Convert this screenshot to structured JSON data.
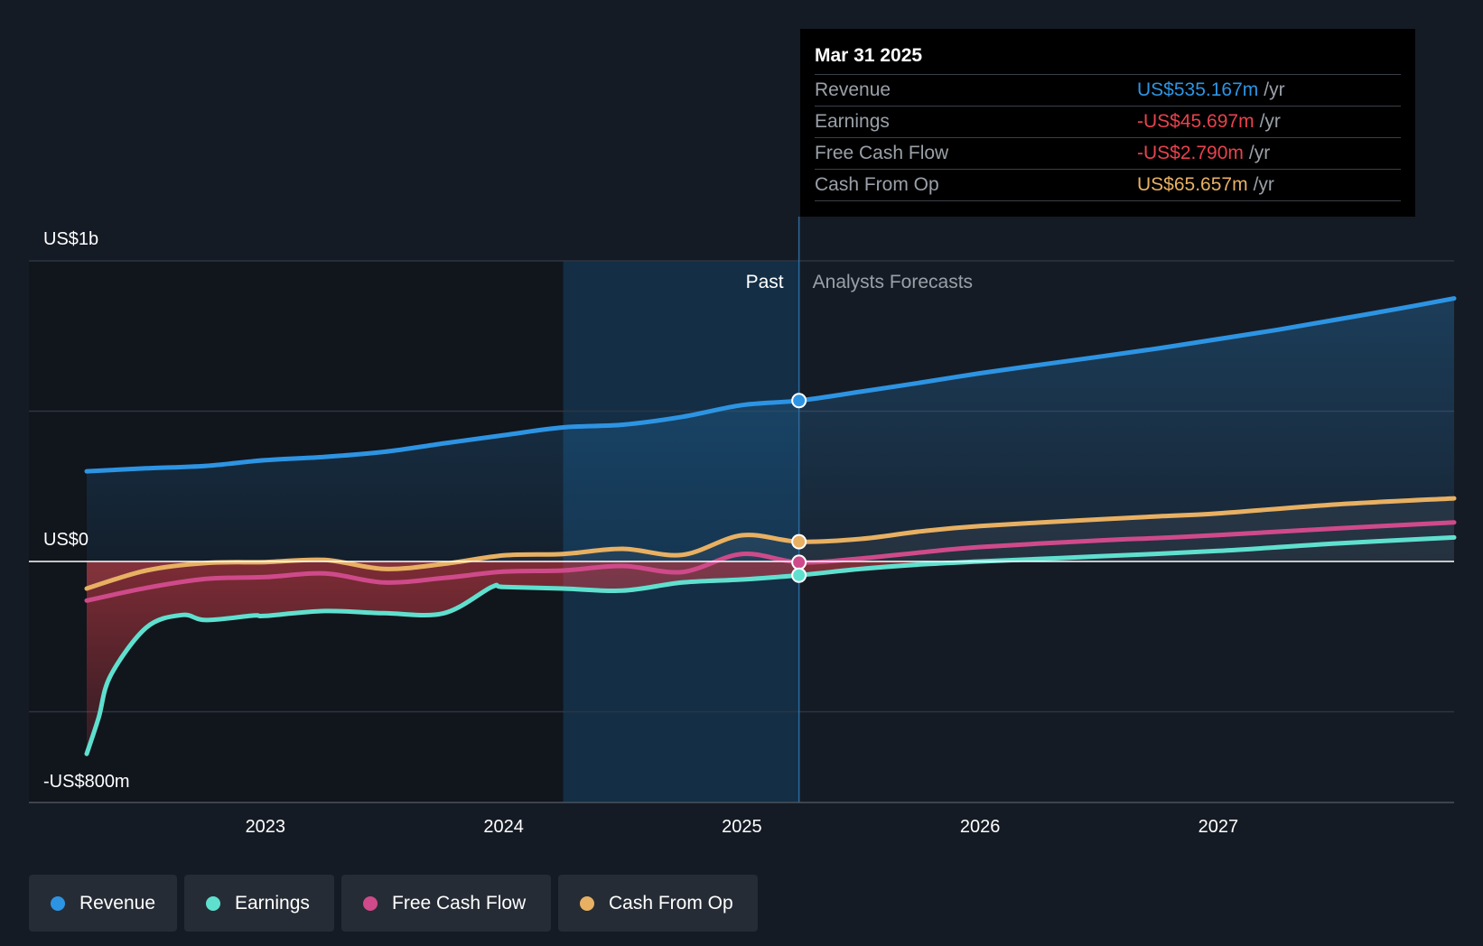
{
  "tooltip": {
    "date": "Mar 31 2025",
    "rows": [
      {
        "name": "Revenue",
        "value": "US$535.167m",
        "unit": "/yr",
        "color": "#2d94e3"
      },
      {
        "name": "Earnings",
        "value": "-US$45.697m",
        "unit": "/yr",
        "color": "#e8424d"
      },
      {
        "name": "Free Cash Flow",
        "value": "-US$2.790m",
        "unit": "/yr",
        "color": "#e8424d"
      },
      {
        "name": "Cash From Op",
        "value": "US$65.657m",
        "unit": "/yr",
        "color": "#e8b062"
      }
    ]
  },
  "legend": [
    {
      "label": "Revenue",
      "color": "#2d94e3"
    },
    {
      "label": "Earnings",
      "color": "#5fe0cf"
    },
    {
      "label": "Free Cash Flow",
      "color": "#cf4a8a"
    },
    {
      "label": "Cash From Op",
      "color": "#e8b062"
    }
  ],
  "chart_data": {
    "type": "line",
    "y_labels": {
      "top": "US$1b",
      "zero": "US$0",
      "bottom": "-US$800m"
    },
    "ylim": [
      -800,
      1000
    ],
    "xlim": [
      2022.25,
      2027.99
    ],
    "x_ticks": [
      2023,
      2024,
      2025,
      2026,
      2027
    ],
    "x_tick_labels": [
      "2023",
      "2024",
      "2025",
      "2026",
      "2027"
    ],
    "past_label": "Past",
    "forecast_label": "Analysts Forecasts",
    "past_shade_start": 2024.25,
    "divider_x": 2025.24,
    "grid": true,
    "series": [
      {
        "name": "Revenue",
        "color": "#2d94e3",
        "points": [
          [
            2022.25,
            300
          ],
          [
            2022.5,
            310
          ],
          [
            2022.75,
            318
          ],
          [
            2023.0,
            337
          ],
          [
            2023.25,
            348
          ],
          [
            2023.5,
            365
          ],
          [
            2023.75,
            393
          ],
          [
            2024.0,
            420
          ],
          [
            2024.25,
            446
          ],
          [
            2024.5,
            455
          ],
          [
            2024.75,
            481
          ],
          [
            2025.0,
            520
          ],
          [
            2025.24,
            535
          ],
          [
            2025.5,
            565
          ],
          [
            2025.75,
            595
          ],
          [
            2026.0,
            626
          ],
          [
            2026.25,
            654
          ],
          [
            2026.5,
            681
          ],
          [
            2026.75,
            709
          ],
          [
            2027.0,
            740
          ],
          [
            2027.25,
            771
          ],
          [
            2027.5,
            805
          ],
          [
            2027.75,
            840
          ],
          [
            2027.99,
            875
          ]
        ]
      },
      {
        "name": "Earnings",
        "color": "#5fe0cf",
        "points": [
          [
            2022.25,
            -640
          ],
          [
            2022.3,
            -520
          ],
          [
            2022.35,
            -380
          ],
          [
            2022.5,
            -220
          ],
          [
            2022.65,
            -178
          ],
          [
            2022.75,
            -195
          ],
          [
            2022.95,
            -180
          ],
          [
            2023.0,
            -181
          ],
          [
            2023.25,
            -165
          ],
          [
            2023.5,
            -172
          ],
          [
            2023.75,
            -172
          ],
          [
            2023.95,
            -85
          ],
          [
            2024.0,
            -85
          ],
          [
            2024.25,
            -90
          ],
          [
            2024.5,
            -97
          ],
          [
            2024.75,
            -70
          ],
          [
            2025.0,
            -60
          ],
          [
            2025.24,
            -45.7
          ],
          [
            2025.5,
            -25
          ],
          [
            2025.75,
            -10
          ],
          [
            2026.0,
            0
          ],
          [
            2026.5,
            17
          ],
          [
            2027.0,
            35
          ],
          [
            2027.5,
            60
          ],
          [
            2027.99,
            80
          ]
        ]
      },
      {
        "name": "Free Cash Flow",
        "color": "#cf4a8a",
        "points": [
          [
            2022.25,
            -130
          ],
          [
            2022.5,
            -88
          ],
          [
            2022.75,
            -58
          ],
          [
            2023.0,
            -52
          ],
          [
            2023.25,
            -40
          ],
          [
            2023.5,
            -70
          ],
          [
            2023.75,
            -55
          ],
          [
            2024.0,
            -34
          ],
          [
            2024.25,
            -30
          ],
          [
            2024.5,
            -15
          ],
          [
            2024.75,
            -35
          ],
          [
            2025.0,
            25
          ],
          [
            2025.24,
            -2.79
          ],
          [
            2025.5,
            10
          ],
          [
            2025.75,
            30
          ],
          [
            2026.0,
            48
          ],
          [
            2026.5,
            70
          ],
          [
            2026.75,
            78
          ],
          [
            2027.0,
            88
          ],
          [
            2027.5,
            110
          ],
          [
            2027.99,
            130
          ]
        ]
      },
      {
        "name": "Cash From Op",
        "color": "#e8b062",
        "points": [
          [
            2022.25,
            -90
          ],
          [
            2022.5,
            -30
          ],
          [
            2022.75,
            -5
          ],
          [
            2023.0,
            -2
          ],
          [
            2023.25,
            5
          ],
          [
            2023.5,
            -25
          ],
          [
            2023.75,
            -8
          ],
          [
            2024.0,
            20
          ],
          [
            2024.25,
            25
          ],
          [
            2024.5,
            42
          ],
          [
            2024.75,
            22
          ],
          [
            2025.0,
            87
          ],
          [
            2025.24,
            65.657
          ],
          [
            2025.5,
            75
          ],
          [
            2025.75,
            100
          ],
          [
            2026.0,
            118
          ],
          [
            2026.5,
            140
          ],
          [
            2026.75,
            150
          ],
          [
            2027.0,
            160
          ],
          [
            2027.5,
            190
          ],
          [
            2027.99,
            210
          ]
        ]
      }
    ],
    "markers_at": 2025.24,
    "marker_values": {
      "Revenue": 535.167,
      "Cash From Op": 65.657,
      "Free Cash Flow": -2.79,
      "Earnings": -45.697
    }
  }
}
